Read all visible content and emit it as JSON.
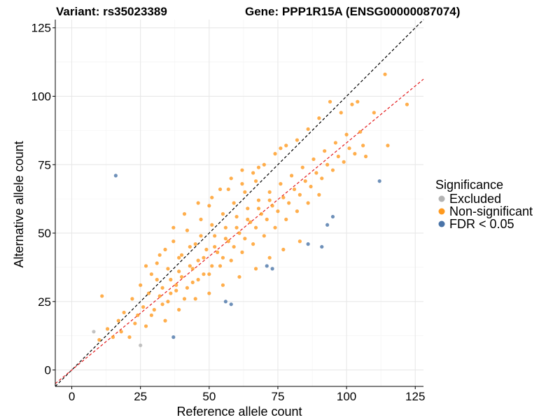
{
  "chart_data": {
    "type": "scatter",
    "title_left": "Variant: rs35023389",
    "title_right": "Gene: PPP1R15A (ENSG00000087074)",
    "xlabel": "Reference allele count",
    "ylabel": "Alternative allele count",
    "xlim": [
      -6,
      128
    ],
    "ylim": [
      -6,
      128
    ],
    "xticks": [
      0,
      25,
      50,
      75,
      100,
      125
    ],
    "yticks": [
      0,
      25,
      50,
      75,
      100,
      125
    ],
    "grid": true,
    "legend": {
      "title": "Significance",
      "position": "right",
      "entries": [
        {
          "label": "Excluded",
          "color": "#b3b3b3"
        },
        {
          "label": "Non-significant",
          "color": "#ff9a1f"
        },
        {
          "label": "FDR < 0.05",
          "color": "#4a74a8"
        }
      ]
    },
    "reference_lines": [
      {
        "name": "identity",
        "slope": 1.0,
        "intercept": 0,
        "color": "#000000",
        "style": "dashed"
      },
      {
        "name": "fit",
        "slope": 0.83,
        "intercept": 0,
        "color": "#e31a1c",
        "style": "dashed"
      }
    ],
    "series": [
      {
        "name": "Excluded",
        "color": "#b3b3b3",
        "points": [
          [
            8,
            14
          ],
          [
            25,
            9
          ]
        ]
      },
      {
        "name": "FDR < 0.05",
        "color": "#4a74a8",
        "points": [
          [
            16,
            71
          ],
          [
            37,
            12
          ],
          [
            56,
            25
          ],
          [
            58,
            24
          ],
          [
            71,
            38
          ],
          [
            73,
            37
          ],
          [
            86,
            46
          ],
          [
            91,
            45
          ],
          [
            93,
            53
          ],
          [
            95,
            56
          ],
          [
            112,
            69
          ]
        ]
      },
      {
        "name": "Non-significant",
        "color": "#ff9a1f",
        "points": [
          [
            11,
            27
          ],
          [
            10,
            11
          ],
          [
            13,
            15
          ],
          [
            15,
            12
          ],
          [
            17,
            18
          ],
          [
            18,
            14
          ],
          [
            19,
            21
          ],
          [
            21,
            12
          ],
          [
            22,
            26
          ],
          [
            23,
            17
          ],
          [
            24,
            20
          ],
          [
            25,
            31
          ],
          [
            26,
            23
          ],
          [
            27,
            16
          ],
          [
            28,
            28
          ],
          [
            29,
            35
          ],
          [
            30,
            22
          ],
          [
            31,
            39
          ],
          [
            32,
            27
          ],
          [
            33,
            30
          ],
          [
            34,
            44
          ],
          [
            35,
            25
          ],
          [
            36,
            33
          ],
          [
            37,
            47
          ],
          [
            38,
            29
          ],
          [
            39,
            36
          ],
          [
            40,
            42
          ],
          [
            41,
            26
          ],
          [
            42,
            51
          ],
          [
            43,
            38
          ],
          [
            44,
            32
          ],
          [
            45,
            46
          ],
          [
            46,
            40
          ],
          [
            47,
            55
          ],
          [
            48,
            35
          ],
          [
            49,
            44
          ],
          [
            50,
            60
          ],
          [
            51,
            38
          ],
          [
            52,
            49
          ],
          [
            53,
            43
          ],
          [
            54,
            66
          ],
          [
            55,
            41
          ],
          [
            56,
            52
          ],
          [
            57,
            47
          ],
          [
            58,
            70
          ],
          [
            59,
            45
          ],
          [
            60,
            56
          ],
          [
            61,
            50
          ],
          [
            62,
            68
          ],
          [
            63,
            48
          ],
          [
            64,
            59
          ],
          [
            65,
            54
          ],
          [
            66,
            72
          ],
          [
            67,
            52
          ],
          [
            68,
            62
          ],
          [
            69,
            57
          ],
          [
            70,
            75
          ],
          [
            71,
            55
          ],
          [
            72,
            65
          ],
          [
            73,
            60
          ],
          [
            74,
            79
          ],
          [
            75,
            58
          ],
          [
            76,
            68
          ],
          [
            77,
            63
          ],
          [
            78,
            82
          ],
          [
            79,
            61
          ],
          [
            80,
            71
          ],
          [
            81,
            66
          ],
          [
            82,
            84
          ],
          [
            83,
            64
          ],
          [
            84,
            74
          ],
          [
            85,
            69
          ],
          [
            86,
            88
          ],
          [
            87,
            67
          ],
          [
            88,
            77
          ],
          [
            89,
            72
          ],
          [
            90,
            92
          ],
          [
            91,
            70
          ],
          [
            92,
            80
          ],
          [
            93,
            75
          ],
          [
            94,
            98
          ],
          [
            95,
            73
          ],
          [
            96,
            83
          ],
          [
            97,
            78
          ],
          [
            98,
            94
          ],
          [
            99,
            76
          ],
          [
            100,
            86
          ],
          [
            101,
            81
          ],
          [
            102,
            97
          ],
          [
            103,
            79
          ],
          [
            104,
            98
          ],
          [
            105,
            87
          ],
          [
            106,
            82
          ],
          [
            107,
            78
          ],
          [
            110,
            94
          ],
          [
            114,
            108
          ],
          [
            115,
            82
          ],
          [
            122,
            97
          ],
          [
            29,
            20
          ],
          [
            33,
            24
          ],
          [
            38,
            31
          ],
          [
            42,
            30
          ],
          [
            46,
            33
          ],
          [
            50,
            35
          ],
          [
            54,
            38
          ],
          [
            58,
            40
          ],
          [
            62,
            43
          ],
          [
            66,
            46
          ],
          [
            70,
            49
          ],
          [
            74,
            52
          ],
          [
            78,
            55
          ],
          [
            82,
            58
          ],
          [
            86,
            61
          ],
          [
            90,
            64
          ],
          [
            31,
            33
          ],
          [
            35,
            37
          ],
          [
            39,
            41
          ],
          [
            43,
            45
          ],
          [
            47,
            49
          ],
          [
            51,
            53
          ],
          [
            55,
            57
          ],
          [
            59,
            61
          ],
          [
            63,
            65
          ],
          [
            67,
            69
          ],
          [
            36,
            28
          ],
          [
            40,
            34
          ],
          [
            44,
            37
          ],
          [
            48,
            41
          ],
          [
            52,
            45
          ],
          [
            56,
            48
          ],
          [
            60,
            52
          ],
          [
            64,
            55
          ],
          [
            68,
            59
          ],
          [
            72,
            62
          ],
          [
            34,
            18
          ],
          [
            39,
            22
          ],
          [
            45,
            26
          ],
          [
            50,
            28
          ],
          [
            55,
            31
          ],
          [
            61,
            34
          ],
          [
            67,
            37
          ],
          [
            72,
            41
          ],
          [
            77,
            44
          ],
          [
            83,
            47
          ],
          [
            27,
            38
          ],
          [
            32,
            42
          ],
          [
            37,
            52
          ],
          [
            41,
            57
          ],
          [
            46,
            61
          ],
          [
            51,
            63
          ],
          [
            57,
            66
          ],
          [
            62,
            73
          ],
          [
            68,
            74
          ],
          [
            76,
            81
          ]
        ]
      }
    ]
  }
}
